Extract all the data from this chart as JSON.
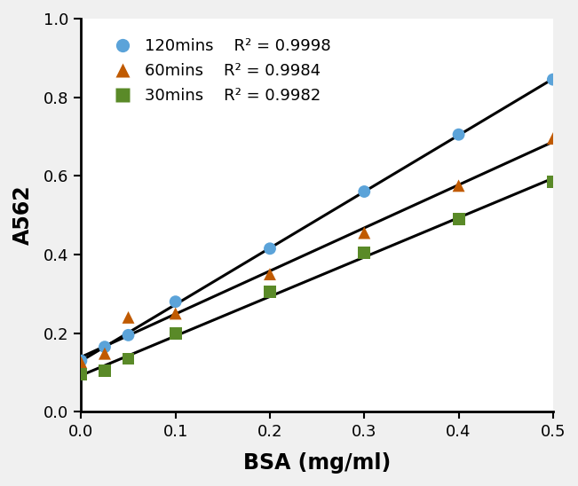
{
  "series": [
    {
      "label": "120mins",
      "r2": "0.9998",
      "color": "#5BA3D9",
      "marker": "o",
      "x": [
        0,
        0.025,
        0.05,
        0.1,
        0.2,
        0.3,
        0.4,
        0.5
      ],
      "y": [
        0.13,
        0.165,
        0.195,
        0.28,
        0.415,
        0.56,
        0.705,
        0.845
      ]
    },
    {
      "label": "60mins",
      "r2": "0.9984",
      "color": "#C05A00",
      "marker": "^",
      "x": [
        0,
        0.025,
        0.05,
        0.1,
        0.2,
        0.3,
        0.4,
        0.5
      ],
      "y": [
        0.125,
        0.148,
        0.24,
        0.25,
        0.35,
        0.455,
        0.575,
        0.695
      ]
    },
    {
      "label": "30mins",
      "r2": "0.9982",
      "color": "#5A8A28",
      "marker": "s",
      "x": [
        0,
        0.025,
        0.05,
        0.1,
        0.2,
        0.3,
        0.4,
        0.5
      ],
      "y": [
        0.095,
        0.105,
        0.135,
        0.2,
        0.305,
        0.405,
        0.49,
        0.585
      ]
    }
  ],
  "xlabel": "BSA (mg/ml)",
  "ylabel": "A562",
  "xlim": [
    0.0,
    0.5
  ],
  "ylim": [
    0.0,
    1.0
  ],
  "xticks": [
    0,
    0.1,
    0.2,
    0.3,
    0.4,
    0.5
  ],
  "yticks": [
    0.0,
    0.2,
    0.4,
    0.6,
    0.8,
    1.0
  ],
  "figsize": [
    6.51,
    5.48
  ],
  "dpi": 100,
  "background_color": "#f0f0f0",
  "plot_background_color": "#ffffff",
  "line_color": "#000000",
  "line_width": 2.2,
  "marker_size": 10,
  "xlabel_fontsize": 17,
  "ylabel_fontsize": 17,
  "tick_fontsize": 13,
  "legend_fontsize": 13
}
